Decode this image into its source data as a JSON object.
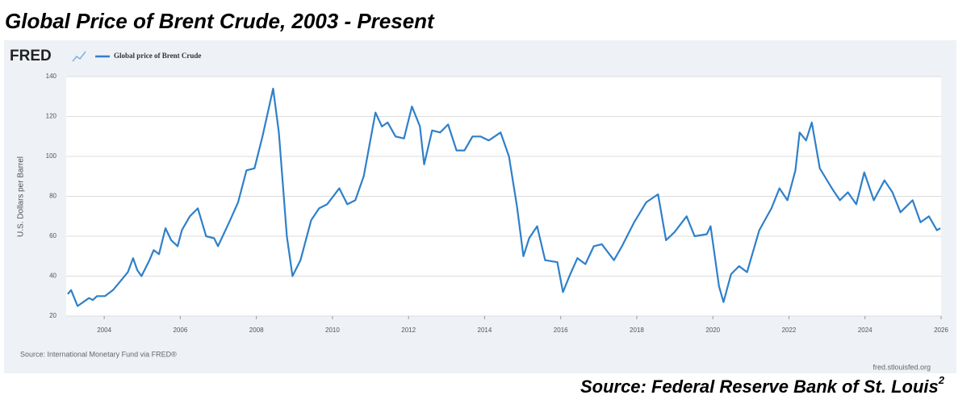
{
  "heading": "Global Price of Brent Crude, 2003 - Present",
  "source": "Source: Federal Reserve Bank of St. Louis",
  "source_note": "2",
  "chart_data": {
    "type": "line",
    "logo": "FRED",
    "ylabel": "U.S. Dollars per Barrel",
    "note": "Source: International Monetary Fund via FRED®",
    "credit": "fred.stlouisfed.org",
    "xlim": [
      2003,
      2026
    ],
    "xticks": [
      2004,
      2006,
      2008,
      2010,
      2012,
      2014,
      2016,
      2018,
      2020,
      2022,
      2024,
      2026
    ],
    "ylim": [
      20,
      140
    ],
    "yticks": [
      20,
      40,
      60,
      80,
      100,
      120,
      140
    ],
    "grid": true,
    "x": [
      2003.04,
      2003.13,
      2003.3,
      2003.6,
      2003.7,
      2003.81,
      2004.02,
      2004.23,
      2004.45,
      2004.62,
      2004.76,
      2004.87,
      2004.98,
      2005.19,
      2005.3,
      2005.44,
      2005.61,
      2005.76,
      2005.93,
      2006.04,
      2006.25,
      2006.46,
      2006.68,
      2006.89,
      2006.99,
      2007.31,
      2007.52,
      2007.74,
      2007.95,
      2008.16,
      2008.44,
      2008.59,
      2008.8,
      2008.95,
      2009.16,
      2009.44,
      2009.65,
      2009.86,
      2010.18,
      2010.39,
      2010.6,
      2010.82,
      2011.13,
      2011.3,
      2011.45,
      2011.66,
      2011.88,
      2012.09,
      2012.3,
      2012.41,
      2012.62,
      2012.83,
      2013.04,
      2013.26,
      2013.47,
      2013.68,
      2013.89,
      2014.11,
      2014.42,
      2014.64,
      2014.85,
      2015.02,
      2015.17,
      2015.38,
      2015.59,
      2015.91,
      2016.06,
      2016.23,
      2016.44,
      2016.65,
      2016.87,
      2017.08,
      2017.4,
      2017.61,
      2017.93,
      2018.25,
      2018.56,
      2018.77,
      2018.99,
      2019.31,
      2019.52,
      2019.84,
      2019.94,
      2020.16,
      2020.28,
      2020.48,
      2020.69,
      2020.9,
      2021.22,
      2021.54,
      2021.75,
      2021.96,
      2022.17,
      2022.28,
      2022.45,
      2022.6,
      2022.81,
      2023.13,
      2023.34,
      2023.55,
      2023.77,
      2023.98,
      2024.23,
      2024.51,
      2024.72,
      2024.93,
      2025.25,
      2025.46,
      2025.68,
      2025.89,
      2025.98
    ],
    "series": [
      {
        "name": "Global price of Brent Crude",
        "color": "#2f80c9",
        "values": [
          31,
          33,
          25,
          29,
          28,
          30,
          30,
          33,
          38,
          42,
          49,
          43,
          40,
          48,
          53,
          51,
          64,
          58,
          55,
          63,
          70,
          74,
          60,
          59,
          55,
          68,
          77,
          93,
          94,
          110,
          134,
          112,
          60,
          40,
          48,
          68,
          74,
          76,
          84,
          76,
          78,
          90,
          122,
          115,
          117,
          110,
          109,
          125,
          115,
          96,
          113,
          112,
          116,
          103,
          103,
          110,
          110,
          108,
          112,
          100,
          75,
          50,
          59,
          65,
          48,
          47,
          32,
          40,
          49,
          46,
          55,
          56,
          48,
          55,
          67,
          77,
          81,
          58,
          62,
          70,
          60,
          61,
          65,
          35,
          27,
          41,
          45,
          42,
          63,
          74,
          84,
          78,
          93,
          112,
          108,
          117,
          94,
          84,
          78,
          82,
          76,
          92,
          78,
          88,
          82,
          72,
          78,
          67,
          70,
          63,
          64
        ]
      }
    ]
  }
}
